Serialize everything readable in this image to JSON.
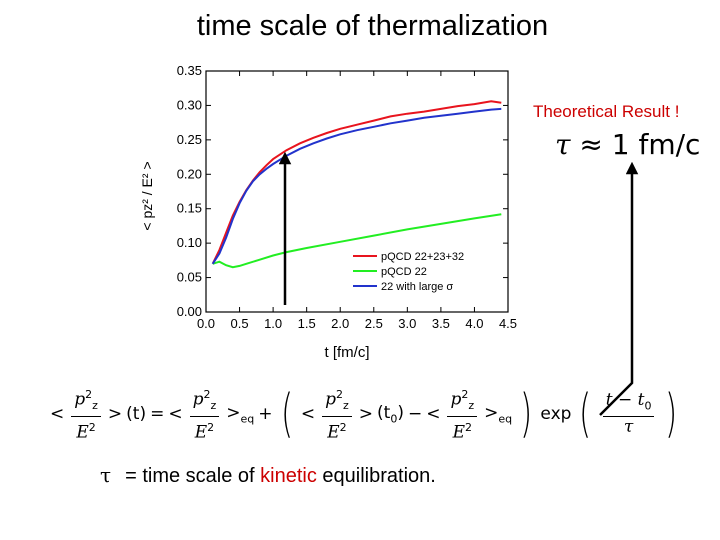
{
  "slide": {
    "title": "time scale of thermalization",
    "theory_label": "Theoretical Result !",
    "tau_symbol": "τ",
    "tau_relation": "≈ 1 fm/c",
    "definition_symbol": "τ",
    "definition_prefix": "= time scale of ",
    "definition_highlight": "kinetic",
    "definition_suffix": " equilibration."
  },
  "equation": {
    "lt": "<",
    "gt": ">",
    "num": "p",
    "num_sub": "z",
    "num_sup": "2",
    "den": "E",
    "den_sup": "2",
    "arg_t": "(t)",
    "eq_sign": "=",
    "eq_sub": "eq",
    "plus": "+",
    "minus": "−",
    "arg_t0": "(t",
    "t0_sub": "0",
    "arg_close": ")",
    "exp": "exp",
    "exp_num": "t − t",
    "exp_num_sub": "0",
    "exp_den": "τ",
    "open_paren": "(",
    "close_paren": ")"
  },
  "colors": {
    "accent": "#cc0000",
    "red_series": "#e8141e",
    "green_series": "#22ee22",
    "blue_series": "#2233cc"
  },
  "chart_data": {
    "type": "line",
    "title": "",
    "xlabel": "t [fm/c]",
    "ylabel": "< p_z^2 / E^2 >",
    "xlim": [
      0.0,
      4.5
    ],
    "ylim": [
      0.0,
      0.35
    ],
    "xticks": [
      "0.0",
      "0.5",
      "1.0",
      "1.5",
      "2.0",
      "2.5",
      "3.0",
      "3.5",
      "4.0",
      "4.5"
    ],
    "yticks": [
      "0.00",
      "0.05",
      "0.10",
      "0.15",
      "0.20",
      "0.25",
      "0.30",
      "0.35"
    ],
    "grid": false,
    "legend_position": "bottom-right",
    "series": [
      {
        "name": "pQCD 22+23+32",
        "color": "#e8141e",
        "x": [
          0.1,
          0.2,
          0.3,
          0.4,
          0.5,
          0.6,
          0.7,
          0.8,
          0.9,
          1.0,
          1.2,
          1.4,
          1.6,
          1.8,
          2.0,
          2.25,
          2.5,
          2.75,
          3.0,
          3.25,
          3.5,
          3.75,
          4.0,
          4.25,
          4.4
        ],
        "y": [
          0.07,
          0.09,
          0.115,
          0.14,
          0.16,
          0.177,
          0.191,
          0.203,
          0.213,
          0.222,
          0.235,
          0.245,
          0.253,
          0.26,
          0.266,
          0.272,
          0.278,
          0.284,
          0.288,
          0.291,
          0.295,
          0.299,
          0.302,
          0.306,
          0.304
        ]
      },
      {
        "name": "pQCD 22",
        "color": "#22ee22",
        "x": [
          0.1,
          0.2,
          0.3,
          0.4,
          0.5,
          0.6,
          0.8,
          1.0,
          1.2,
          1.5,
          2.0,
          2.5,
          3.0,
          3.5,
          4.0,
          4.4
        ],
        "y": [
          0.07,
          0.073,
          0.068,
          0.065,
          0.067,
          0.07,
          0.076,
          0.082,
          0.087,
          0.093,
          0.102,
          0.111,
          0.12,
          0.128,
          0.136,
          0.142
        ]
      },
      {
        "name": "22 with large σ",
        "color": "#2233cc",
        "x": [
          0.1,
          0.2,
          0.3,
          0.4,
          0.5,
          0.6,
          0.7,
          0.8,
          0.9,
          1.0,
          1.2,
          1.4,
          1.6,
          1.8,
          2.0,
          2.25,
          2.5,
          2.75,
          3.0,
          3.25,
          3.5,
          3.75,
          4.0,
          4.25,
          4.4
        ],
        "y": [
          0.07,
          0.085,
          0.108,
          0.135,
          0.158,
          0.176,
          0.19,
          0.2,
          0.208,
          0.215,
          0.227,
          0.237,
          0.245,
          0.252,
          0.258,
          0.264,
          0.269,
          0.274,
          0.278,
          0.282,
          0.285,
          0.288,
          0.291,
          0.294,
          0.295
        ]
      }
    ]
  }
}
